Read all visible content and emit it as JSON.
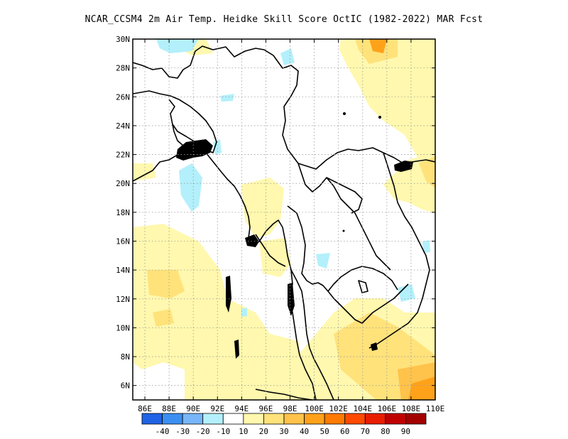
{
  "title": "NCAR_CCSM4  2m Air Temp. Heidke Skill Score OctIC (1982-2022) MAR Fcst",
  "map": {
    "lon_range": [
      85,
      110
    ],
    "lat_range": [
      5,
      30
    ],
    "x_ticks": [
      "86E",
      "88E",
      "90E",
      "92E",
      "94E",
      "96E",
      "98E",
      "100E",
      "102E",
      "104E",
      "106E",
      "108E",
      "110E"
    ],
    "y_ticks": [
      "30N",
      "28N",
      "26N",
      "24N",
      "22N",
      "20N",
      "18N",
      "16N",
      "14N",
      "12N",
      "10N",
      "8N",
      "6N"
    ],
    "grid": "dotted"
  },
  "colorbar": {
    "colors": [
      "#1f63e6",
      "#3c8ff2",
      "#78b6f9",
      "#b3f0fb",
      "#ffffff",
      "#fff8ae",
      "#ffe27a",
      "#ffc24a",
      "#ffa21a",
      "#ff7a00",
      "#ff4a00",
      "#e91d00",
      "#c00000",
      "#a30000"
    ],
    "labels": [
      "-40",
      "-30",
      "-20",
      "-10",
      "10",
      "20",
      "30",
      "40",
      "50",
      "60",
      "70",
      "80",
      "90"
    ]
  }
}
